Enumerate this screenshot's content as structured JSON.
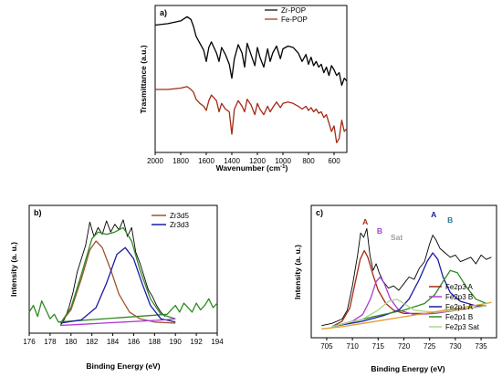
{
  "chart_data": [
    {
      "type": "line",
      "panel": "a)",
      "xlabel": "Wavenumber (cm",
      "xlabel_sup": "-1",
      "xlabel_tail": ")",
      "ylabel": "Trasmittance (a.u.)",
      "xlim": [
        2000,
        500
      ],
      "reversed_x": true,
      "x_ticks": [
        2000,
        1800,
        1600,
        1400,
        1200,
        1000,
        800,
        600
      ],
      "y_ticks_shown": false,
      "legend_placement": "top-right",
      "series": [
        {
          "name": "Zr-POP",
          "color": "#000000",
          "x": [
            2000,
            1900,
            1800,
            1750,
            1720,
            1700,
            1680,
            1650,
            1620,
            1600,
            1580,
            1560,
            1520,
            1500,
            1480,
            1450,
            1420,
            1400,
            1380,
            1350,
            1320,
            1300,
            1280,
            1250,
            1220,
            1200,
            1180,
            1150,
            1120,
            1100,
            1080,
            1050,
            1020,
            1000,
            960,
            920,
            900,
            880,
            850,
            820,
            800,
            780,
            760,
            740,
            720,
            700,
            680,
            660,
            640,
            620,
            600,
            580,
            560,
            540,
            520,
            500
          ],
          "y": [
            0.86,
            0.87,
            0.89,
            0.92,
            0.9,
            0.85,
            0.78,
            0.73,
            0.68,
            0.6,
            0.7,
            0.74,
            0.66,
            0.6,
            0.7,
            0.65,
            0.58,
            0.48,
            0.62,
            0.72,
            0.66,
            0.56,
            0.73,
            0.65,
            0.57,
            0.7,
            0.63,
            0.56,
            0.69,
            0.6,
            0.66,
            0.71,
            0.62,
            0.69,
            0.71,
            0.7,
            0.68,
            0.66,
            0.6,
            0.65,
            0.58,
            0.63,
            0.57,
            0.6,
            0.56,
            0.58,
            0.52,
            0.56,
            0.5,
            0.57,
            0.54,
            0.5,
            0.52,
            0.43,
            0.48,
            0.46
          ]
        },
        {
          "name": "Fe-POP",
          "color": "#a42a14",
          "x": [
            2000,
            1900,
            1800,
            1750,
            1720,
            1700,
            1680,
            1650,
            1620,
            1600,
            1580,
            1560,
            1520,
            1500,
            1480,
            1450,
            1420,
            1400,
            1380,
            1350,
            1320,
            1300,
            1280,
            1250,
            1220,
            1200,
            1180,
            1150,
            1120,
            1100,
            1080,
            1050,
            1020,
            1000,
            960,
            920,
            900,
            880,
            850,
            820,
            800,
            780,
            760,
            740,
            720,
            700,
            680,
            660,
            640,
            620,
            600,
            580,
            560,
            540,
            520,
            500
          ],
          "y": [
            0.4,
            0.4,
            0.41,
            0.42,
            0.4,
            0.38,
            0.33,
            0.3,
            0.28,
            0.25,
            0.32,
            0.36,
            0.32,
            0.24,
            0.3,
            0.26,
            0.24,
            0.08,
            0.26,
            0.32,
            0.28,
            0.24,
            0.33,
            0.29,
            0.22,
            0.3,
            0.26,
            0.22,
            0.28,
            0.24,
            0.27,
            0.31,
            0.27,
            0.3,
            0.31,
            0.3,
            0.29,
            0.28,
            0.26,
            0.28,
            0.25,
            0.27,
            0.24,
            0.26,
            0.23,
            0.24,
            0.2,
            0.22,
            0.16,
            0.1,
            0.14,
            0.02,
            0.05,
            0.18,
            0.1,
            0.12
          ]
        }
      ]
    },
    {
      "type": "line",
      "panel": "b)",
      "xlabel": "Binding Energy (eV)",
      "ylabel": "Intensity (a. u.)",
      "xlim": [
        176,
        194
      ],
      "x_ticks": [
        176,
        178,
        180,
        182,
        184,
        186,
        188,
        190,
        192,
        194
      ],
      "y_ticks_shown": false,
      "legend_placement": "top-right",
      "series": [
        {
          "name": "",
          "color": "#000000",
          "role": "raw",
          "x": [
            179.0,
            179.4,
            179.8,
            180.2,
            180.6,
            181.0,
            181.4,
            181.8,
            182.2,
            182.6,
            183.0,
            183.4,
            183.8,
            184.2,
            184.6,
            185.0,
            185.4,
            185.8,
            186.2,
            186.6,
            187.0,
            187.4,
            187.8,
            188.2,
            188.6,
            189.0
          ],
          "y": [
            0.02,
            0.08,
            0.18,
            0.32,
            0.5,
            0.62,
            0.74,
            0.95,
            0.82,
            0.9,
            0.84,
            0.96,
            0.86,
            0.93,
            0.88,
            0.97,
            0.82,
            0.9,
            0.68,
            0.58,
            0.46,
            0.34,
            0.28,
            0.2,
            0.14,
            0.1
          ]
        },
        {
          "name": "",
          "color": "#2e8b22",
          "role": "noise",
          "x": [
            176,
            176.4,
            176.8,
            177.2,
            177.6,
            178.0,
            178.4,
            178.8,
            189.2,
            189.6,
            190.0,
            190.4,
            190.8,
            191.2,
            191.6,
            192.0,
            192.4,
            192.8,
            193.2,
            193.6,
            194.0
          ],
          "y": [
            0.14,
            0.2,
            0.1,
            0.24,
            0.16,
            0.08,
            0.12,
            0.05,
            0.12,
            0.16,
            0.2,
            0.14,
            0.22,
            0.18,
            0.14,
            0.22,
            0.16,
            0.2,
            0.26,
            0.18,
            0.22
          ]
        },
        {
          "name": "Zr3d5",
          "color": "#a0522d",
          "x": [
            179,
            180,
            181,
            181.8,
            182.4,
            183.0,
            183.8,
            184.6,
            185.6,
            186.6,
            188,
            190
          ],
          "y": [
            0.04,
            0.16,
            0.44,
            0.7,
            0.78,
            0.72,
            0.52,
            0.3,
            0.14,
            0.08,
            0.05,
            0.04
          ]
        },
        {
          "name": "Zr3d3",
          "color": "#1a1aa8",
          "x": [
            179,
            181,
            182.4,
            183.4,
            184.4,
            185.2,
            186.0,
            186.8,
            187.6,
            188.6,
            190
          ],
          "y": [
            0.04,
            0.07,
            0.18,
            0.4,
            0.66,
            0.72,
            0.62,
            0.4,
            0.2,
            0.08,
            0.05
          ]
        },
        {
          "name": "",
          "color": "#2e8b22",
          "role": "envelope",
          "x": [
            179,
            180,
            181,
            182,
            182.6,
            183.4,
            184.2,
            185.0,
            185.8,
            186.6,
            187.6,
            188.6,
            190
          ],
          "y": [
            0.04,
            0.18,
            0.48,
            0.8,
            0.86,
            0.84,
            0.86,
            0.9,
            0.78,
            0.52,
            0.26,
            0.12,
            0.08
          ]
        },
        {
          "name": "",
          "color": "#b03ad0",
          "role": "baseline",
          "x": [
            179,
            181,
            183,
            185,
            187,
            189,
            190
          ],
          "y": [
            0.02,
            0.03,
            0.04,
            0.05,
            0.06,
            0.07,
            0.08
          ]
        }
      ]
    },
    {
      "type": "line",
      "panel": "c)",
      "xlabel": "Binding Energy (eV)",
      "ylabel": "Intensity (a. u.)",
      "xlim": [
        702,
        738
      ],
      "x_ticks": [
        705,
        710,
        715,
        720,
        725,
        730,
        735
      ],
      "y_ticks_shown": false,
      "legend_placement": "center-right",
      "peak_labels": [
        {
          "text": "A",
          "x": 712.5,
          "color": "#a42a14"
        },
        {
          "text": "B",
          "x": 715.3,
          "color": "#a040c8"
        },
        {
          "text": "Sat",
          "x": 718.6,
          "color": "#a0a0a0"
        },
        {
          "text": "A",
          "x": 725.8,
          "color": "#1a1aa8"
        },
        {
          "text": "B",
          "x": 729.0,
          "color": "#2e7b8c"
        }
      ],
      "series": [
        {
          "name": "",
          "color": "#000000",
          "role": "raw",
          "x": [
            704,
            706,
            708,
            709,
            710,
            711,
            711.6,
            712.2,
            712.8,
            713.4,
            714.0,
            714.6,
            715.2,
            716.0,
            717.0,
            718.0,
            719.0,
            720.0,
            721.0,
            722.0,
            723.0,
            724.0,
            725.0,
            725.6,
            726.2,
            727.0,
            728.0,
            729.0,
            730.0,
            731.0,
            732.0,
            733.0,
            734.0,
            735.0,
            736.0,
            737.0
          ],
          "y": [
            0.06,
            0.08,
            0.12,
            0.2,
            0.42,
            0.7,
            0.9,
            0.86,
            0.94,
            0.7,
            0.56,
            0.62,
            0.54,
            0.46,
            0.4,
            0.42,
            0.38,
            0.44,
            0.5,
            0.48,
            0.58,
            0.64,
            0.8,
            0.88,
            0.84,
            0.76,
            0.72,
            0.68,
            0.7,
            0.64,
            0.66,
            0.68,
            0.62,
            0.7,
            0.66,
            0.68
          ]
        },
        {
          "name": "Fe2p3 A",
          "color": "#a42a14",
          "x": [
            706,
            708,
            709.5,
            710.5,
            711.5,
            712.3,
            713.0,
            714.0,
            715.0,
            716.5,
            718,
            720,
            724,
            730,
            736
          ],
          "y": [
            0.05,
            0.1,
            0.22,
            0.44,
            0.66,
            0.74,
            0.68,
            0.52,
            0.38,
            0.26,
            0.2,
            0.17,
            0.17,
            0.2,
            0.24
          ]
        },
        {
          "name": "Fe2p3 B",
          "color": "#b03ad0",
          "x": [
            706,
            710,
            712,
            713.5,
            714.6,
            715.4,
            716.2,
            717.4,
            719,
            722,
            726,
            732,
            736
          ],
          "y": [
            0.05,
            0.1,
            0.16,
            0.3,
            0.46,
            0.5,
            0.44,
            0.3,
            0.2,
            0.16,
            0.17,
            0.21,
            0.24
          ]
        },
        {
          "name": "Fe2p1 A",
          "color": "#1a1aa8",
          "x": [
            706,
            712,
            716,
            719,
            721,
            723,
            724.5,
            725.6,
            726.6,
            727.6,
            729,
            731,
            734,
            736
          ],
          "y": [
            0.05,
            0.1,
            0.15,
            0.2,
            0.3,
            0.48,
            0.64,
            0.72,
            0.66,
            0.5,
            0.36,
            0.28,
            0.24,
            0.24
          ]
        },
        {
          "name": "Fe2p1 B",
          "color": "#2e8b22",
          "x": [
            706,
            714,
            720,
            724,
            726,
            727.6,
            729,
            730.4,
            732,
            734,
            736
          ],
          "y": [
            0.05,
            0.14,
            0.2,
            0.26,
            0.34,
            0.46,
            0.56,
            0.54,
            0.42,
            0.3,
            0.26
          ]
        },
        {
          "name": "Fe2p3 Sat",
          "color": "#a8d88a",
          "x": [
            706,
            712,
            715,
            717,
            718.6,
            720,
            722,
            726,
            732,
            736
          ],
          "y": [
            0.05,
            0.12,
            0.2,
            0.28,
            0.3,
            0.26,
            0.2,
            0.18,
            0.21,
            0.24
          ]
        },
        {
          "name": "",
          "color": "#e0a030",
          "role": "baseline",
          "x": [
            704,
            708,
            712,
            716,
            720,
            724,
            728,
            732,
            736,
            737
          ],
          "y": [
            0.03,
            0.05,
            0.08,
            0.11,
            0.14,
            0.17,
            0.2,
            0.23,
            0.26,
            0.27
          ]
        }
      ]
    }
  ]
}
